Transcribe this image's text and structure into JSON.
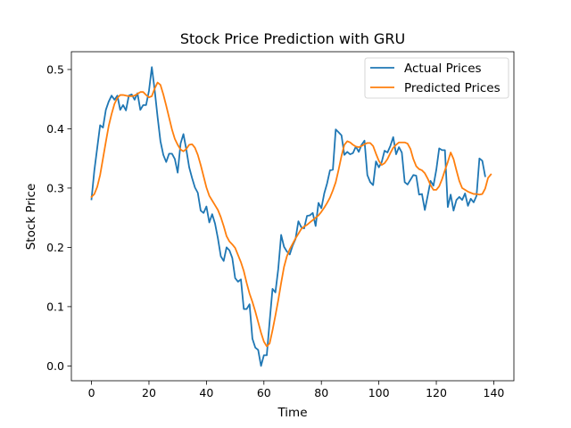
{
  "chart_data": {
    "type": "line",
    "title": "Stock Price Prediction with GRU",
    "xlabel": "Time",
    "ylabel": "Stock Price",
    "xlim": [
      -7,
      147
    ],
    "ylim": [
      -0.025,
      0.53
    ],
    "xticks": [
      0,
      20,
      40,
      60,
      80,
      100,
      120,
      140
    ],
    "yticks": [
      0.0,
      0.1,
      0.2,
      0.3,
      0.4,
      0.5
    ],
    "ytick_labels": [
      "0.0",
      "0.1",
      "0.2",
      "0.3",
      "0.4",
      "0.5"
    ],
    "grid": false,
    "legend_position": "top-right",
    "series": [
      {
        "name": "Actual Prices",
        "color": "#1f77b4",
        "values": [
          0.281,
          0.33,
          0.368,
          0.406,
          0.402,
          0.432,
          0.446,
          0.456,
          0.449,
          0.456,
          0.432,
          0.44,
          0.431,
          0.456,
          0.458,
          0.449,
          0.46,
          0.432,
          0.44,
          0.44,
          0.464,
          0.504,
          0.465,
          0.42,
          0.379,
          0.356,
          0.344,
          0.358,
          0.358,
          0.349,
          0.326,
          0.375,
          0.391,
          0.365,
          0.335,
          0.317,
          0.301,
          0.292,
          0.262,
          0.258,
          0.269,
          0.242,
          0.256,
          0.24,
          0.215,
          0.185,
          0.177,
          0.2,
          0.195,
          0.182,
          0.148,
          0.142,
          0.146,
          0.096,
          0.096,
          0.104,
          0.046,
          0.031,
          0.027,
          0.0,
          0.018,
          0.018,
          0.075,
          0.13,
          0.124,
          0.164,
          0.221,
          0.201,
          0.193,
          0.188,
          0.203,
          0.214,
          0.244,
          0.234,
          0.232,
          0.253,
          0.254,
          0.258,
          0.236,
          0.275,
          0.266,
          0.291,
          0.308,
          0.33,
          0.331,
          0.399,
          0.394,
          0.389,
          0.356,
          0.361,
          0.357,
          0.359,
          0.37,
          0.361,
          0.373,
          0.38,
          0.322,
          0.31,
          0.305,
          0.345,
          0.335,
          0.344,
          0.363,
          0.36,
          0.371,
          0.386,
          0.357,
          0.369,
          0.36,
          0.31,
          0.306,
          0.314,
          0.322,
          0.321,
          0.289,
          0.29,
          0.263,
          0.287,
          0.312,
          0.304,
          0.331,
          0.367,
          0.364,
          0.364,
          0.268,
          0.289,
          0.262,
          0.28,
          0.285,
          0.28,
          0.291,
          0.27,
          0.282,
          0.276,
          0.287,
          0.35,
          0.346,
          0.32
        ],
        "x_start": 0,
        "x_step": 1
      },
      {
        "name": "Predicted Prices",
        "color": "#ff7f0e",
        "values": [
          0.285,
          0.29,
          0.302,
          0.322,
          0.35,
          0.378,
          0.405,
          0.425,
          0.442,
          0.452,
          0.457,
          0.457,
          0.456,
          0.455,
          0.455,
          0.456,
          0.459,
          0.462,
          0.462,
          0.457,
          0.453,
          0.455,
          0.468,
          0.478,
          0.474,
          0.458,
          0.439,
          0.419,
          0.399,
          0.383,
          0.373,
          0.365,
          0.362,
          0.366,
          0.373,
          0.374,
          0.368,
          0.356,
          0.339,
          0.32,
          0.301,
          0.287,
          0.279,
          0.271,
          0.263,
          0.251,
          0.236,
          0.219,
          0.21,
          0.205,
          0.199,
          0.187,
          0.175,
          0.16,
          0.14,
          0.122,
          0.108,
          0.092,
          0.074,
          0.056,
          0.041,
          0.033,
          0.038,
          0.06,
          0.085,
          0.111,
          0.14,
          0.167,
          0.185,
          0.197,
          0.206,
          0.215,
          0.223,
          0.231,
          0.235,
          0.238,
          0.242,
          0.246,
          0.25,
          0.254,
          0.26,
          0.267,
          0.275,
          0.284,
          0.296,
          0.31,
          0.331,
          0.354,
          0.373,
          0.379,
          0.377,
          0.373,
          0.37,
          0.369,
          0.371,
          0.374,
          0.376,
          0.376,
          0.371,
          0.358,
          0.346,
          0.339,
          0.342,
          0.349,
          0.359,
          0.368,
          0.373,
          0.377,
          0.377,
          0.377,
          0.375,
          0.366,
          0.349,
          0.337,
          0.332,
          0.33,
          0.325,
          0.316,
          0.305,
          0.297,
          0.297,
          0.303,
          0.315,
          0.33,
          0.344,
          0.36,
          0.349,
          0.33,
          0.312,
          0.3,
          0.297,
          0.294,
          0.292,
          0.29,
          0.29,
          0.289,
          0.29,
          0.299,
          0.317,
          0.323
        ],
        "x_start": 0,
        "x_step": 1
      }
    ]
  }
}
